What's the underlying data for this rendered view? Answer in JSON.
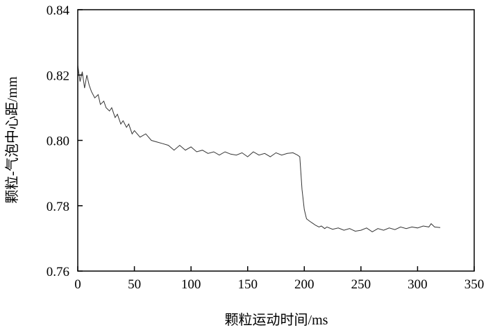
{
  "chart_data": {
    "type": "line",
    "title": "",
    "xlabel": "颗粒运动时间/ms",
    "ylabel": "颗粒-气泡中心距/mm",
    "xlim": [
      0,
      350
    ],
    "ylim": [
      0.76,
      0.84
    ],
    "xticks": [
      "0",
      "50",
      "100",
      "150",
      "200",
      "250",
      "300",
      "350"
    ],
    "yticks": [
      "0.76",
      "0.78",
      "0.80",
      "0.82",
      "0.84"
    ],
    "grid": false,
    "line_color": "#333333",
    "series": [
      {
        "x": [
          0,
          2,
          4,
          6,
          8,
          10,
          12,
          15,
          18,
          20,
          23,
          25,
          28,
          30,
          33,
          35,
          38,
          40,
          43,
          45,
          48,
          50,
          55,
          60,
          65,
          70,
          75,
          80,
          85,
          90,
          95,
          100,
          105,
          110,
          115,
          120,
          125,
          130,
          135,
          140,
          145,
          150,
          155,
          160,
          165,
          170,
          175,
          180,
          185,
          190,
          194,
          196,
          197,
          198,
          200,
          202,
          205,
          208,
          210,
          213,
          215,
          218,
          220,
          225,
          230,
          235,
          240,
          245,
          250,
          255,
          260,
          265,
          270,
          275,
          280,
          285,
          290,
          295,
          300,
          305,
          310,
          312,
          315,
          320
        ],
        "y": [
          0.823,
          0.818,
          0.821,
          0.816,
          0.82,
          0.817,
          0.815,
          0.813,
          0.814,
          0.811,
          0.812,
          0.81,
          0.809,
          0.81,
          0.807,
          0.808,
          0.805,
          0.806,
          0.804,
          0.805,
          0.802,
          0.803,
          0.801,
          0.802,
          0.8,
          0.7995,
          0.799,
          0.7985,
          0.797,
          0.7985,
          0.797,
          0.798,
          0.7965,
          0.797,
          0.796,
          0.7965,
          0.7955,
          0.7965,
          0.7958,
          0.7955,
          0.7962,
          0.795,
          0.7965,
          0.7955,
          0.796,
          0.795,
          0.7962,
          0.7955,
          0.796,
          0.7962,
          0.7955,
          0.795,
          0.79,
          0.785,
          0.7788,
          0.776,
          0.7752,
          0.7745,
          0.774,
          0.7735,
          0.7738,
          0.773,
          0.7735,
          0.7728,
          0.7732,
          0.7725,
          0.773,
          0.7722,
          0.7725,
          0.7732,
          0.772,
          0.773,
          0.7725,
          0.7732,
          0.7727,
          0.7735,
          0.773,
          0.7735,
          0.7732,
          0.7738,
          0.7735,
          0.7745,
          0.7735,
          0.7733
        ]
      }
    ]
  }
}
